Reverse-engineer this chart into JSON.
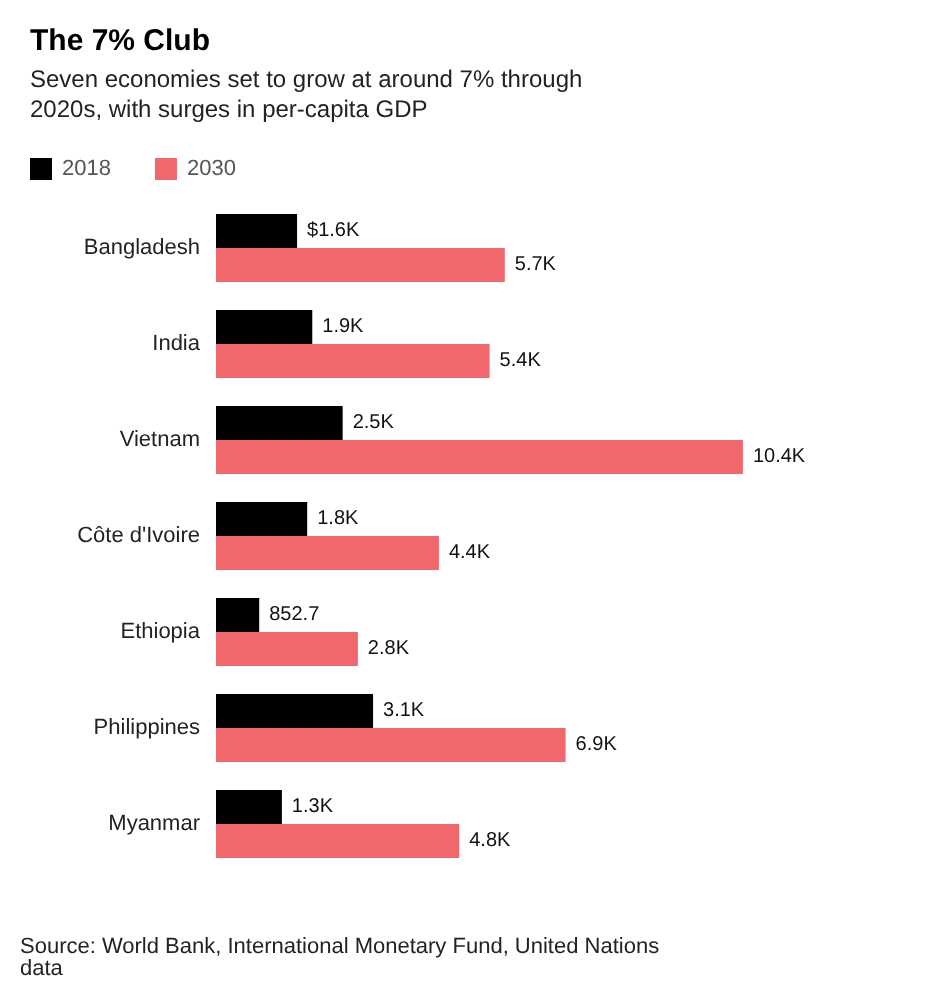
{
  "chart_data": {
    "type": "bar",
    "orientation": "horizontal",
    "title": "The 7% Club",
    "subtitle": "Seven economies set to grow at around 7% through 2020s, with surges in per-capita GDP",
    "categories": [
      "Bangladesh",
      "India",
      "Vietnam",
      "Côte d'Ivoire",
      "Ethiopia",
      "Philippines",
      "Myanmar"
    ],
    "series": [
      {
        "name": "2018",
        "color": "#000000",
        "values": [
          1600,
          1900,
          2500,
          1800,
          852.7,
          3100,
          1300
        ],
        "value_labels": [
          "$1.6K",
          "1.9K",
          "2.5K",
          "1.8K",
          "852.7",
          "3.1K",
          "1.3K"
        ]
      },
      {
        "name": "2030",
        "color": "#f0676c",
        "values": [
          5700,
          5400,
          10400,
          4400,
          2800,
          6900,
          4800
        ],
        "value_labels": [
          "5.7K",
          "5.4K",
          "10.4K",
          "4.4K",
          "2.8K",
          "6.9K",
          "4.8K"
        ]
      }
    ],
    "legend": "top left",
    "annotations": [
      "Source: World Bank, International Monetary Fund, United Nations data"
    ]
  }
}
